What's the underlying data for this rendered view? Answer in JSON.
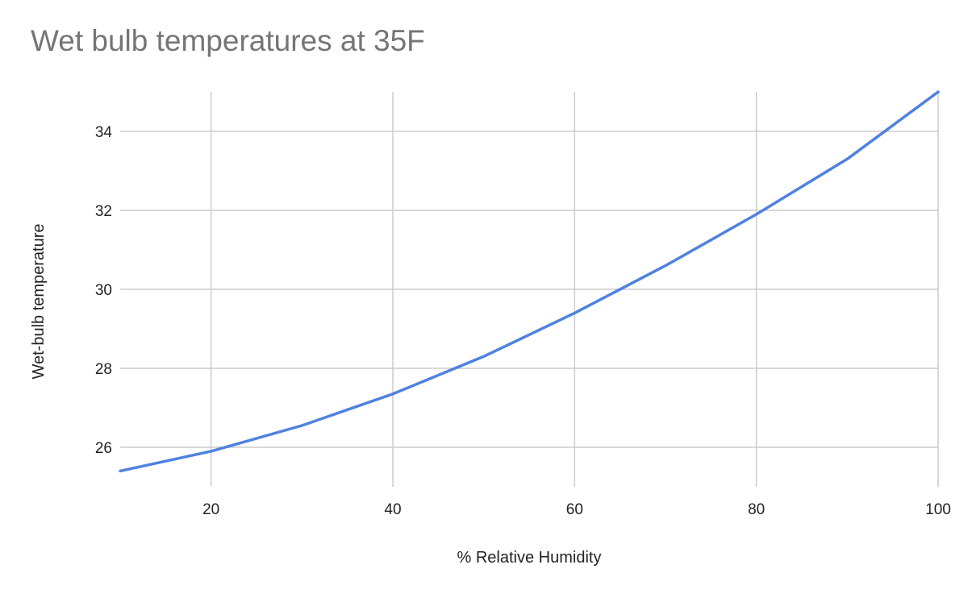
{
  "chart_data": {
    "type": "line",
    "title": "Wet bulb temperatures at 35F",
    "xlabel": "% Relative Humidity",
    "ylabel": "Wet-bulb temperature",
    "xlim": [
      10,
      100
    ],
    "ylim": [
      25,
      35
    ],
    "x_ticks": [
      20,
      40,
      60,
      80,
      100
    ],
    "y_ticks": [
      26,
      28,
      30,
      32,
      34
    ],
    "grid": true,
    "legend": "none",
    "series": [
      {
        "color": "#4f81e0",
        "x": [
          10,
          20,
          30,
          40,
          50,
          60,
          70,
          80,
          90,
          100
        ],
        "y": [
          25.4,
          25.9,
          26.55,
          27.35,
          28.3,
          29.4,
          30.6,
          31.9,
          33.3,
          35.0
        ]
      }
    ]
  }
}
